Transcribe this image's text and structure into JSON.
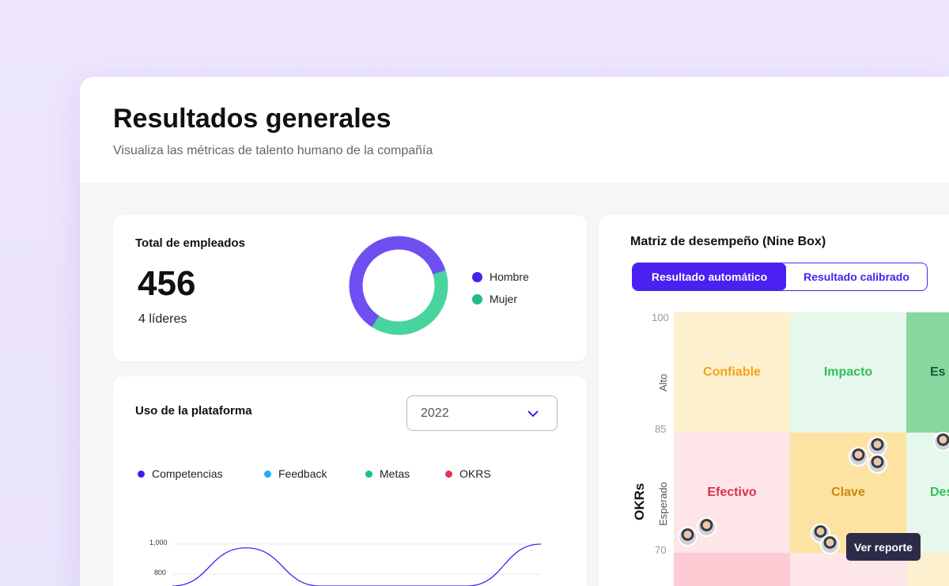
{
  "header": {
    "title": "Resultados generales",
    "subtitle": "Visualiza las métricas de talento humano de la compañía"
  },
  "employees": {
    "title": "Total de empleados",
    "total": "456",
    "leaders": "4 líderes",
    "legend": [
      {
        "label": "Hombre",
        "color": "#4a21f0"
      },
      {
        "label": "Mujer",
        "color": "#1fbf84"
      }
    ],
    "donut": {
      "Hombre": 61,
      "Mujer": 39,
      "colors": [
        "#6f4ef2",
        "#48d49d"
      ]
    }
  },
  "usage": {
    "title": "Uso de la plataforma",
    "year": "2022",
    "legend": [
      {
        "label": "Competencias",
        "color": "#3d1ff0"
      },
      {
        "label": "Feedback",
        "color": "#1ab0f0"
      },
      {
        "label": "Metas",
        "color": "#1fbf84"
      },
      {
        "label": "OKRS",
        "color": "#e0344f"
      }
    ],
    "chart_data": {
      "type": "line",
      "yticks": [
        "1,000",
        "800"
      ],
      "series": [
        {
          "values": [
            700,
            975,
            680,
            600,
            700,
            1000
          ]
        }
      ],
      "ylim": [
        0,
        1000
      ]
    }
  },
  "ninebox": {
    "title": "Matriz de desempeño (Nine Box)",
    "tabs": [
      "Resultado automático",
      "Resultado calibrado"
    ],
    "yaxis": "OKRs",
    "rows": [
      "Alto",
      "Esperado"
    ],
    "ticks": [
      "100",
      "85",
      "70"
    ],
    "cells": [
      {
        "label": "Confiable",
        "bg": "#fdf0cf",
        "fg": "#f5a31a"
      },
      {
        "label": "Impacto",
        "bg": "#e6f7ec",
        "fg": "#2fbf5a"
      },
      {
        "label": "Es",
        "bg": "#86d8a0",
        "fg": "#145c30"
      },
      {
        "label": "Efectivo",
        "bg": "#fde5e8",
        "fg": "#d9304f"
      },
      {
        "label": "Clave",
        "bg": "#fde3a2",
        "fg": "#c88a0a"
      },
      {
        "label": "Des",
        "bg": "#e6f7ec",
        "fg": "#2fbf5a"
      },
      {
        "label": "",
        "bg": "#fdcbd3",
        "fg": "#000"
      },
      {
        "label": "",
        "bg": "#fde5e8",
        "fg": "#000"
      },
      {
        "label": "",
        "bg": "#fdf0cf",
        "fg": "#000"
      }
    ],
    "tooltip": "Ver reporte"
  }
}
